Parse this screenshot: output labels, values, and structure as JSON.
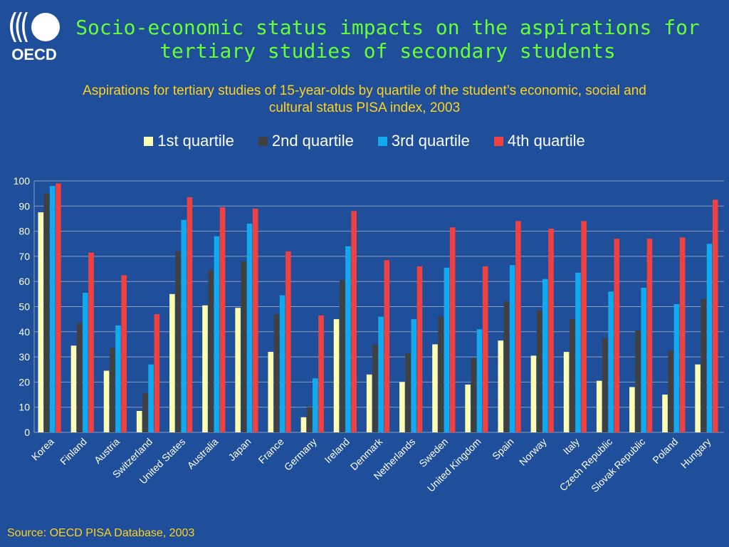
{
  "header": {
    "logo_text": "OECD",
    "title_line1": "Socio-economic status impacts on the aspirations for",
    "title_line2": "tertiary studies of secondary students"
  },
  "colors": {
    "background": "#1f4f9b",
    "title": "#66ff33",
    "subtitle": "#ffd21a"
  },
  "chart_data": {
    "type": "bar",
    "subtitle_line1": "Aspirations for tertiary studies of 15-year-olds by quartile of the student’s economic, social and",
    "subtitle_line2": "cultural status PISA index, 2003",
    "categories": [
      "Korea",
      "Finland",
      "Austria",
      "Switzerland",
      "United States",
      "Australia",
      "Japan",
      "France",
      "Germany",
      "Ireland",
      "Denmark",
      "Netherlands",
      "Sweden",
      "United Kingdom",
      "Spain",
      "Norway",
      "Italy",
      "Czech Republic",
      "Slovak Republic",
      "Poland",
      "Hungary"
    ],
    "series": [
      {
        "name": "1st quartile",
        "color": "#ffffb3",
        "values": [
          87.5,
          34.5,
          24.5,
          8.5,
          55,
          50.5,
          49.5,
          32,
          6,
          45,
          23,
          20,
          35,
          19,
          36.5,
          30.5,
          32,
          20.5,
          18,
          15,
          27
        ]
      },
      {
        "name": "2nd quartile",
        "color": "#404040",
        "values": [
          95,
          43.5,
          33.5,
          15.5,
          72,
          64.5,
          68,
          47,
          10,
          60.5,
          35,
          31.5,
          46,
          29.5,
          52,
          48.5,
          45,
          37.5,
          40.5,
          32.5,
          53
        ]
      },
      {
        "name": "3rd quartile",
        "color": "#11aaee",
        "values": [
          98,
          55.5,
          42.5,
          27,
          84.5,
          78,
          83,
          54.5,
          21.5,
          74,
          46,
          45,
          65.5,
          41,
          66.5,
          61,
          63.5,
          56,
          57.5,
          51,
          75
        ]
      },
      {
        "name": "4th quartile",
        "color": "#f04040",
        "values": [
          99,
          71.5,
          62.5,
          47,
          93.5,
          89.5,
          89,
          72,
          46.5,
          88,
          68.5,
          66,
          81.5,
          66,
          84,
          81,
          84,
          77,
          77,
          77.5,
          92.5
        ]
      }
    ],
    "yticks": [
      "0",
      "10",
      "20",
      "30",
      "40",
      "50",
      "60",
      "70",
      "80",
      "90",
      "100"
    ],
    "ylim": [
      0,
      100
    ],
    "grid": true,
    "legend_position": "top"
  },
  "source": "Source: OECD PISA Database, 2003"
}
